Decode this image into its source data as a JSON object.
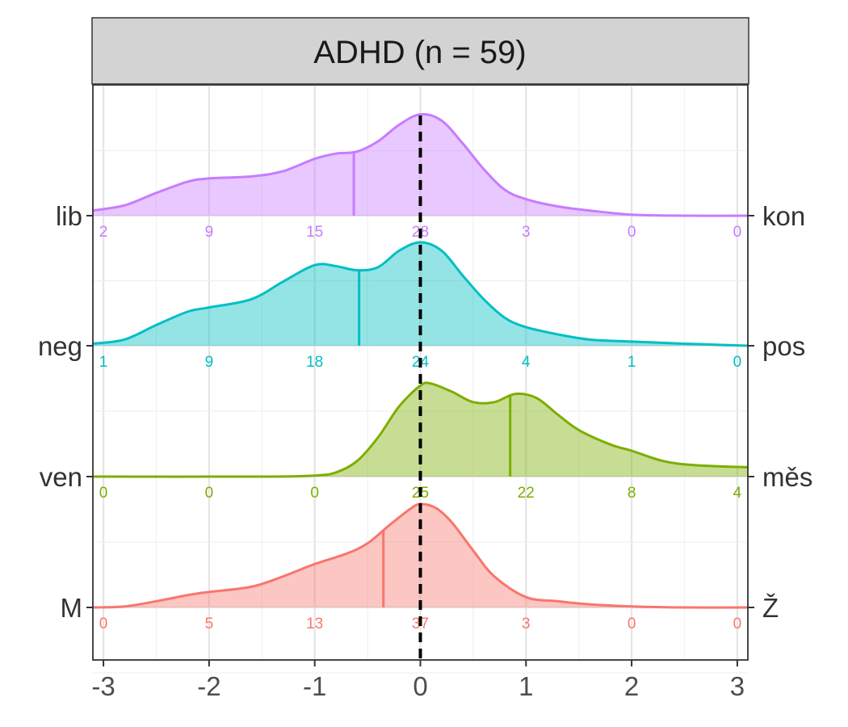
{
  "chart_data": {
    "type": "area",
    "title": "ADHD (n = 59)",
    "xlabel": "",
    "ylabel": "",
    "xlim": [
      -3.1,
      3.1
    ],
    "x_ticks": [
      "-3",
      "-2",
      "-1",
      "0",
      "1",
      "2",
      "3"
    ],
    "x_tick_values": [
      -3,
      -2,
      -1,
      0,
      1,
      2,
      3
    ],
    "grid": true,
    "reference_line": {
      "x": 0,
      "style": "dashed",
      "color": "#000000"
    },
    "bin_centers": [
      -3,
      -2,
      -1,
      0,
      1,
      2,
      3
    ],
    "series": [
      {
        "left_label": "M",
        "right_label": "Ž",
        "color": "#F8766D",
        "counts": [
          "0",
          "5",
          "13",
          "37",
          "3",
          "0",
          "0"
        ],
        "mean": -0.35,
        "density": [
          [
            -3.1,
            0
          ],
          [
            -2.8,
            0.01
          ],
          [
            -2.5,
            0.06
          ],
          [
            -2.2,
            0.12
          ],
          [
            -2.0,
            0.15
          ],
          [
            -1.6,
            0.2
          ],
          [
            -1.3,
            0.3
          ],
          [
            -1.0,
            0.42
          ],
          [
            -0.7,
            0.52
          ],
          [
            -0.5,
            0.62
          ],
          [
            -0.3,
            0.79
          ],
          [
            -0.1,
            0.95
          ],
          [
            0.0,
            1.0
          ],
          [
            0.15,
            0.96
          ],
          [
            0.3,
            0.82
          ],
          [
            0.5,
            0.55
          ],
          [
            0.7,
            0.3
          ],
          [
            1.0,
            0.1
          ],
          [
            1.3,
            0.06
          ],
          [
            1.6,
            0.03
          ],
          [
            2.0,
            0.01
          ],
          [
            2.5,
            0
          ],
          [
            3.1,
            0
          ]
        ]
      },
      {
        "left_label": "ven",
        "right_label": "měs",
        "color": "#7CAE00",
        "counts": [
          "0",
          "0",
          "0",
          "25",
          "22",
          "8",
          "4"
        ],
        "mean": 0.85,
        "density": [
          [
            -3.1,
            0
          ],
          [
            -1.5,
            0
          ],
          [
            -1.0,
            0.01
          ],
          [
            -0.8,
            0.04
          ],
          [
            -0.6,
            0.15
          ],
          [
            -0.4,
            0.38
          ],
          [
            -0.2,
            0.68
          ],
          [
            0.0,
            0.88
          ],
          [
            0.1,
            0.9
          ],
          [
            0.3,
            0.82
          ],
          [
            0.5,
            0.72
          ],
          [
            0.7,
            0.72
          ],
          [
            0.9,
            0.8
          ],
          [
            1.1,
            0.76
          ],
          [
            1.3,
            0.6
          ],
          [
            1.5,
            0.45
          ],
          [
            1.8,
            0.31
          ],
          [
            2.0,
            0.25
          ],
          [
            2.3,
            0.15
          ],
          [
            2.6,
            0.11
          ],
          [
            3.1,
            0.09
          ]
        ]
      },
      {
        "left_label": "neg",
        "right_label": "pos",
        "color": "#00BFC4",
        "counts": [
          "1",
          "9",
          "18",
          "24",
          "4",
          "1",
          "0"
        ],
        "mean": -0.58,
        "density": [
          [
            -3.1,
            0.02
          ],
          [
            -2.8,
            0.06
          ],
          [
            -2.5,
            0.2
          ],
          [
            -2.2,
            0.33
          ],
          [
            -2.0,
            0.37
          ],
          [
            -1.6,
            0.45
          ],
          [
            -1.3,
            0.62
          ],
          [
            -1.0,
            0.78
          ],
          [
            -0.8,
            0.77
          ],
          [
            -0.6,
            0.73
          ],
          [
            -0.4,
            0.76
          ],
          [
            -0.2,
            0.92
          ],
          [
            0.0,
            1.0
          ],
          [
            0.2,
            0.92
          ],
          [
            0.4,
            0.68
          ],
          [
            0.6,
            0.45
          ],
          [
            0.8,
            0.27
          ],
          [
            1.0,
            0.18
          ],
          [
            1.3,
            0.11
          ],
          [
            1.6,
            0.06
          ],
          [
            2.0,
            0.04
          ],
          [
            2.5,
            0.02
          ],
          [
            3.1,
            0.0
          ]
        ]
      },
      {
        "left_label": "lib",
        "right_label": "kon",
        "color": "#C77CFF",
        "counts": [
          "2",
          "9",
          "15",
          "28",
          "3",
          "0",
          "0"
        ],
        "mean": -0.63,
        "density": [
          [
            -3.1,
            0.05
          ],
          [
            -2.8,
            0.1
          ],
          [
            -2.5,
            0.22
          ],
          [
            -2.2,
            0.33
          ],
          [
            -2.0,
            0.36
          ],
          [
            -1.6,
            0.38
          ],
          [
            -1.3,
            0.43
          ],
          [
            -1.0,
            0.55
          ],
          [
            -0.8,
            0.6
          ],
          [
            -0.6,
            0.62
          ],
          [
            -0.4,
            0.72
          ],
          [
            -0.2,
            0.88
          ],
          [
            0.0,
            0.98
          ],
          [
            0.2,
            0.92
          ],
          [
            0.4,
            0.7
          ],
          [
            0.6,
            0.45
          ],
          [
            0.8,
            0.25
          ],
          [
            1.0,
            0.16
          ],
          [
            1.3,
            0.09
          ],
          [
            1.6,
            0.05
          ],
          [
            2.0,
            0.01
          ],
          [
            2.5,
            0
          ],
          [
            3.1,
            0
          ]
        ]
      }
    ]
  }
}
